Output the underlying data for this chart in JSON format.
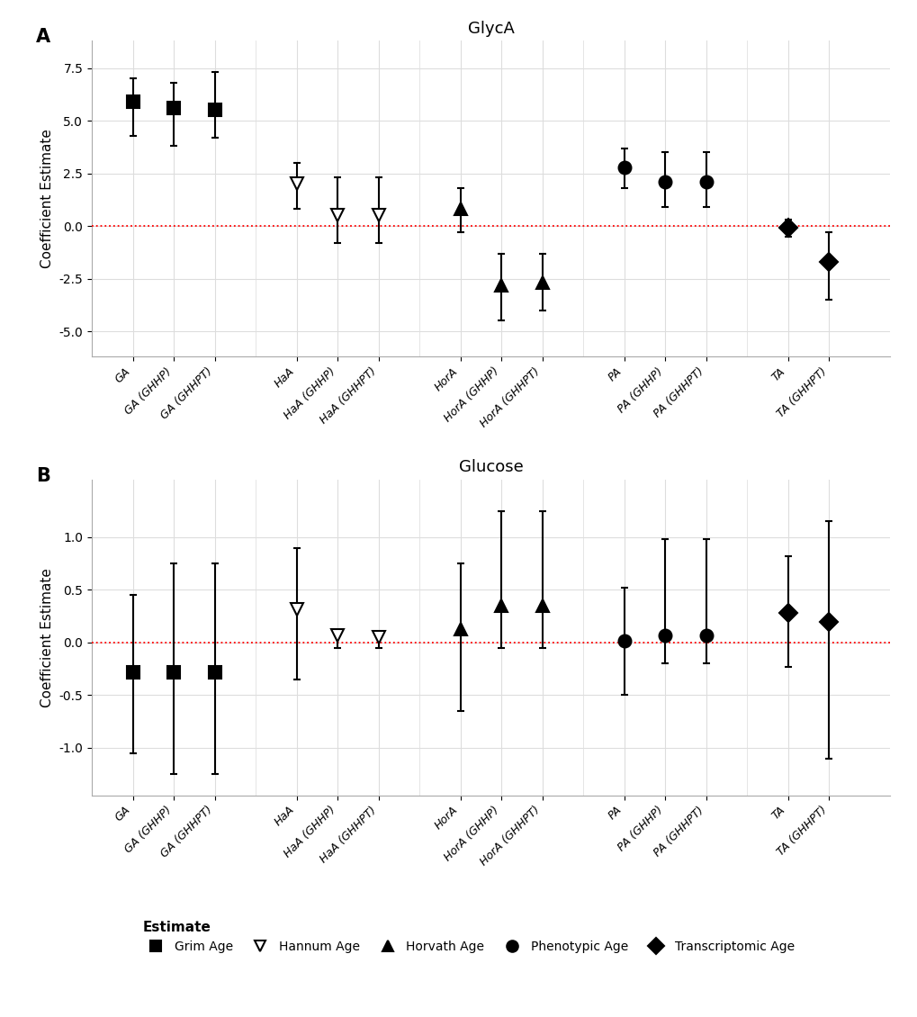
{
  "panel_A_title": "GlycA",
  "panel_B_title": "Glucose",
  "ylabel": "Coefficient Estimate",
  "glyca": {
    "ylim": [
      -6.2,
      8.8
    ],
    "yticks": [
      -5.0,
      -2.5,
      0.0,
      2.5,
      5.0,
      7.5
    ],
    "groups": [
      {
        "label_base": "GA",
        "marker": "s",
        "filled": true,
        "points": [
          {
            "x_label": "GA",
            "est": 5.9,
            "lo": 4.3,
            "hi": 7.0
          },
          {
            "x_label": "GA (GHHP)",
            "est": 5.6,
            "lo": 3.8,
            "hi": 6.8
          },
          {
            "x_label": "GA (GHHPT)",
            "est": 5.5,
            "lo": 4.2,
            "hi": 7.3
          }
        ]
      },
      {
        "label_base": "HaA",
        "marker": "v",
        "filled": false,
        "points": [
          {
            "x_label": "HaA",
            "est": 2.0,
            "lo": 0.8,
            "hi": 3.0
          },
          {
            "x_label": "HaA (GHHP)",
            "est": 0.5,
            "lo": -0.8,
            "hi": 2.3
          },
          {
            "x_label": "HaA (GHHPT)",
            "est": 0.5,
            "lo": -0.8,
            "hi": 2.3
          }
        ]
      },
      {
        "label_base": "HorA",
        "marker": "^",
        "filled": true,
        "points": [
          {
            "x_label": "HorA",
            "est": 0.8,
            "lo": -0.3,
            "hi": 1.8
          },
          {
            "x_label": "HorA (GHHP)",
            "est": -2.8,
            "lo": -4.5,
            "hi": -1.3
          },
          {
            "x_label": "HorA (GHHPT)",
            "est": -2.7,
            "lo": -4.0,
            "hi": -1.3
          }
        ]
      },
      {
        "label_base": "PA",
        "marker": "o",
        "filled": true,
        "points": [
          {
            "x_label": "PA",
            "est": 2.8,
            "lo": 1.8,
            "hi": 3.7
          },
          {
            "x_label": "PA (GHHP)",
            "est": 2.1,
            "lo": 0.9,
            "hi": 3.5
          },
          {
            "x_label": "PA (GHHPT)",
            "est": 2.1,
            "lo": 0.9,
            "hi": 3.5
          }
        ]
      },
      {
        "label_base": "TA",
        "marker": "D",
        "filled": true,
        "points": [
          {
            "x_label": "TA",
            "est": -0.1,
            "lo": -0.5,
            "hi": 0.3
          },
          {
            "x_label": "TA (GHHPT)",
            "est": -1.7,
            "lo": -3.5,
            "hi": -0.3
          }
        ]
      }
    ]
  },
  "glucose": {
    "ylim": [
      -1.45,
      1.55
    ],
    "yticks": [
      -1.0,
      -0.5,
      0.0,
      0.5,
      1.0
    ],
    "groups": [
      {
        "label_base": "GA",
        "marker": "s",
        "filled": true,
        "points": [
          {
            "x_label": "GA",
            "est": -0.28,
            "lo": -1.05,
            "hi": 0.45
          },
          {
            "x_label": "GA (GHHP)",
            "est": -0.28,
            "lo": -1.25,
            "hi": 0.75
          },
          {
            "x_label": "GA (GHHPT)",
            "est": -0.28,
            "lo": -1.25,
            "hi": 0.75
          }
        ]
      },
      {
        "label_base": "HaA",
        "marker": "v",
        "filled": false,
        "points": [
          {
            "x_label": "HaA",
            "est": 0.32,
            "lo": -0.35,
            "hi": 0.9
          },
          {
            "x_label": "HaA (GHHP)",
            "est": 0.07,
            "lo": -0.05,
            "hi": 0.1
          },
          {
            "x_label": "HaA (GHHPT)",
            "est": 0.05,
            "lo": -0.05,
            "hi": 0.1
          }
        ]
      },
      {
        "label_base": "HorA",
        "marker": "^",
        "filled": true,
        "points": [
          {
            "x_label": "HorA",
            "est": 0.13,
            "lo": -0.65,
            "hi": 0.75
          },
          {
            "x_label": "HorA (GHHP)",
            "est": 0.35,
            "lo": -0.05,
            "hi": 1.25
          },
          {
            "x_label": "HorA (GHHPT)",
            "est": 0.35,
            "lo": -0.05,
            "hi": 1.25
          }
        ]
      },
      {
        "label_base": "PA",
        "marker": "o",
        "filled": true,
        "points": [
          {
            "x_label": "PA",
            "est": 0.02,
            "lo": -0.5,
            "hi": 0.52
          },
          {
            "x_label": "PA (GHHP)",
            "est": 0.07,
            "lo": -0.2,
            "hi": 0.98
          },
          {
            "x_label": "PA (GHHPT)",
            "est": 0.07,
            "lo": -0.2,
            "hi": 0.98
          }
        ]
      },
      {
        "label_base": "TA",
        "marker": "D",
        "filled": true,
        "points": [
          {
            "x_label": "TA",
            "est": 0.28,
            "lo": -0.23,
            "hi": 0.82
          },
          {
            "x_label": "TA (GHHPT)",
            "est": 0.2,
            "lo": -1.1,
            "hi": 1.15
          }
        ]
      }
    ]
  },
  "legend_items": [
    {
      "label": "Grim Age",
      "marker": "s",
      "filled": true
    },
    {
      "label": "Hannum Age",
      "marker": "v",
      "filled": false
    },
    {
      "label": "Horvath Age",
      "marker": "^",
      "filled": true
    },
    {
      "label": "Phenotypic Age",
      "marker": "o",
      "filled": true
    },
    {
      "label": "Transcriptomic Age",
      "marker": "D",
      "filled": true
    }
  ],
  "group_positions": {
    "GA": [
      1,
      2,
      3
    ],
    "HaA": [
      5,
      6,
      7
    ],
    "HorA": [
      9,
      10,
      11
    ],
    "PA": [
      13,
      14,
      15
    ],
    "TA": [
      17,
      18
    ]
  },
  "x_tick_map": [
    [
      1,
      "GA"
    ],
    [
      2,
      "GA (GHHP)"
    ],
    [
      3,
      "GA (GHHPT)"
    ],
    [
      5,
      "HaA"
    ],
    [
      6,
      "HaA (GHHP)"
    ],
    [
      7,
      "HaA (GHHPT)"
    ],
    [
      9,
      "HorA"
    ],
    [
      10,
      "HorA (GHHP)"
    ],
    [
      11,
      "HorA (GHHPT)"
    ],
    [
      13,
      "PA"
    ],
    [
      14,
      "PA (GHHP)"
    ],
    [
      15,
      "PA (GHHPT)"
    ],
    [
      17,
      "TA"
    ],
    [
      18,
      "TA (GHHPT)"
    ]
  ],
  "xlim": [
    0,
    19.5
  ],
  "marker_size": 10,
  "capsize": 3,
  "elinewidth": 1.5,
  "grid_color": "#dddddd",
  "ref_line_color": "red",
  "ref_line_style": ":",
  "marker_color": "black",
  "marker_edge_color": "black",
  "bg_color": "white",
  "tick_fontsize": 9,
  "label_fontsize": 11,
  "title_fontsize": 13
}
